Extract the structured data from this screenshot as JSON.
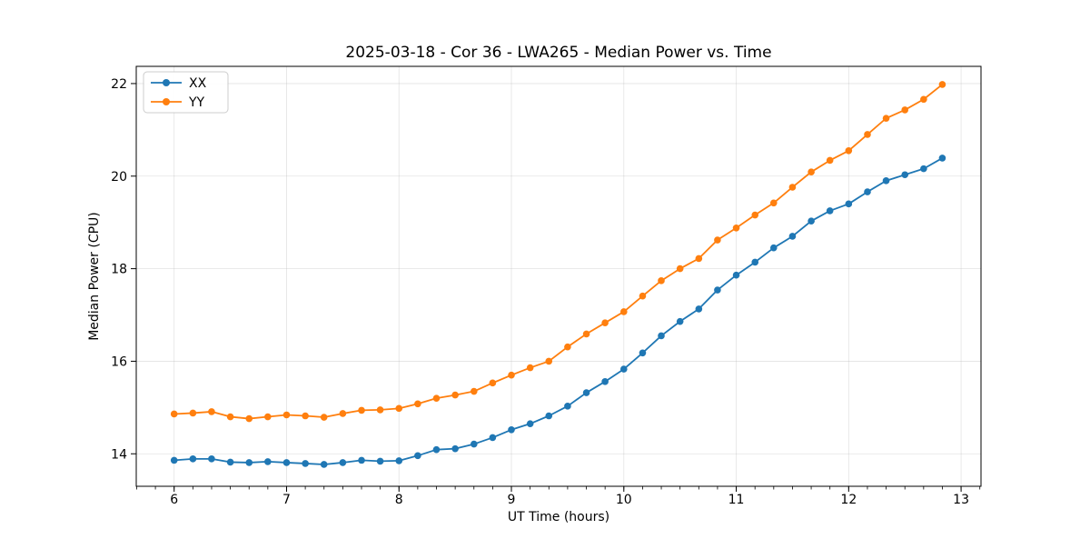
{
  "title": "2025-03-18 - Cor 36 - LWA265 - Median Power vs. Time",
  "colors": {
    "xx_series": "#1f77b4",
    "yy_series": "#ff7f0e",
    "grid": "#b0b0b0",
    "spine": "#000000",
    "background": "#ffffff",
    "legend_border": "#cccccc"
  },
  "legend": {
    "items": [
      {
        "label": "XX",
        "color": "#1f77b4"
      },
      {
        "label": "YY",
        "color": "#ff7f0e"
      }
    ]
  },
  "chart_data": {
    "type": "line",
    "title": "2025-03-18 - Cor 36 - LWA265 - Median Power vs. Time",
    "xlabel": "UT Time (hours)",
    "ylabel": "Median Power (CPU)",
    "xlim": [
      5.663,
      13.177
    ],
    "ylim": [
      13.298,
      22.372
    ],
    "x_major_ticks": [
      6,
      7,
      8,
      9,
      10,
      11,
      12,
      13
    ],
    "x_minor_tick_step": 0.166667,
    "y_major_ticks": [
      14,
      16,
      18,
      20,
      22
    ],
    "grid": true,
    "legend_position": "upper-left",
    "marker": "circle",
    "x": [
      6.0,
      6.167,
      6.333,
      6.5,
      6.667,
      6.833,
      7.0,
      7.167,
      7.333,
      7.5,
      7.667,
      7.833,
      8.0,
      8.167,
      8.333,
      8.5,
      8.667,
      8.833,
      9.0,
      9.167,
      9.333,
      9.5,
      9.667,
      9.833,
      10.0,
      10.167,
      10.333,
      10.5,
      10.667,
      10.833,
      11.0,
      11.167,
      11.333,
      11.5,
      11.667,
      11.833,
      12.0,
      12.167,
      12.333,
      12.5,
      12.667,
      12.833
    ],
    "series": [
      {
        "name": "XX",
        "color": "#1f77b4",
        "values": [
          13.86,
          13.89,
          13.89,
          13.82,
          13.81,
          13.83,
          13.81,
          13.79,
          13.77,
          13.81,
          13.86,
          13.84,
          13.85,
          13.96,
          14.09,
          14.11,
          14.21,
          14.35,
          14.52,
          14.65,
          14.82,
          15.03,
          15.32,
          15.56,
          15.83,
          16.18,
          16.55,
          16.86,
          17.13,
          17.54,
          17.86,
          18.14,
          18.45,
          18.7,
          19.03,
          19.25,
          19.4,
          19.66,
          19.9,
          20.03,
          20.16,
          20.39
        ]
      },
      {
        "name": "YY",
        "color": "#ff7f0e",
        "values": [
          14.86,
          14.88,
          14.91,
          14.8,
          14.76,
          14.8,
          14.84,
          14.82,
          14.79,
          14.87,
          14.94,
          14.95,
          14.98,
          15.08,
          15.2,
          15.27,
          15.35,
          15.53,
          15.7,
          15.86,
          16.0,
          16.31,
          16.59,
          16.83,
          17.07,
          17.41,
          17.74,
          18.0,
          18.22,
          18.62,
          18.88,
          19.16,
          19.42,
          19.76,
          20.09,
          20.34,
          20.55,
          20.9,
          21.25,
          21.43,
          21.66,
          21.98
        ]
      }
    ]
  }
}
